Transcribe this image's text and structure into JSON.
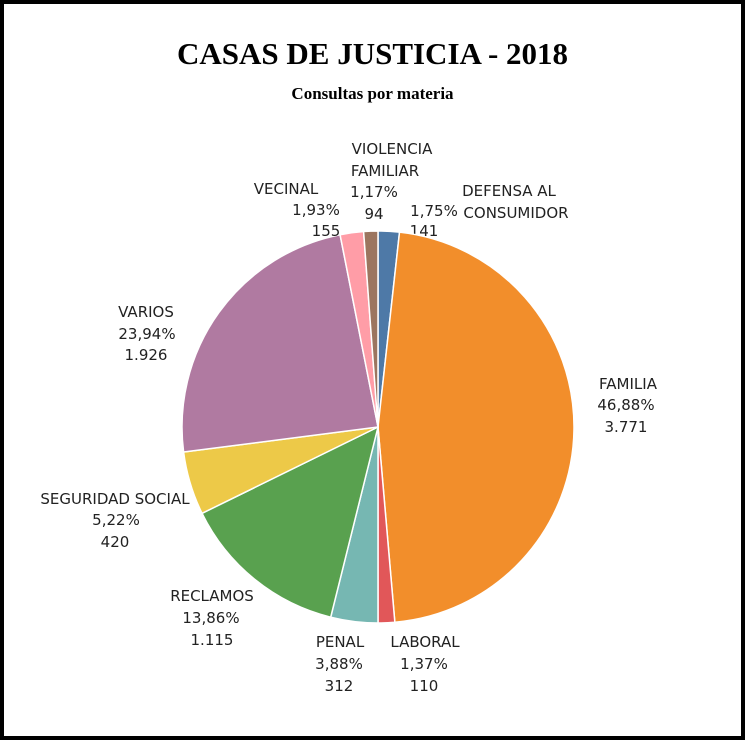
{
  "chart_data": {
    "type": "pie",
    "title": "CASAS DE JUSTICIA - 2018",
    "subtitle": "Consultas por materia",
    "start": "top",
    "direction": "clockwise",
    "slices": [
      {
        "name": [
          "DEFENSA AL",
          "CONSUMIDOR"
        ],
        "percent": "1,75%",
        "value": "141",
        "pct": 1.75,
        "color": "#4e79a7"
      },
      {
        "name": [
          "FAMILIA"
        ],
        "percent": "46,88%",
        "value": "3.771",
        "pct": 46.88,
        "color": "#f28e2b"
      },
      {
        "name": [
          "LABORAL"
        ],
        "percent": "1,37%",
        "value": "110",
        "pct": 1.37,
        "color": "#e15759"
      },
      {
        "name": [
          "PENAL"
        ],
        "percent": "3,88%",
        "value": "312",
        "pct": 3.88,
        "color": "#76b7b2"
      },
      {
        "name": [
          "RECLAMOS"
        ],
        "percent": "13,86%",
        "value": "1.115",
        "pct": 13.86,
        "color": "#59a14f"
      },
      {
        "name": [
          "SEGURIDAD SOCIAL"
        ],
        "percent": "5,22%",
        "value": "420",
        "pct": 5.22,
        "color": "#edc948"
      },
      {
        "name": [
          "VARIOS"
        ],
        "percent": "23,94%",
        "value": "1.926",
        "pct": 23.94,
        "color": "#b07aa1"
      },
      {
        "name": [
          "VECINAL"
        ],
        "percent": "1,93%",
        "value": "155",
        "pct": 1.93,
        "color": "#ff9da7"
      },
      {
        "name": [
          "VIOLENCIA",
          "FAMILIAR"
        ],
        "percent": "1,17%",
        "value": "94",
        "pct": 1.17,
        "color": "#9c755f"
      }
    ]
  }
}
